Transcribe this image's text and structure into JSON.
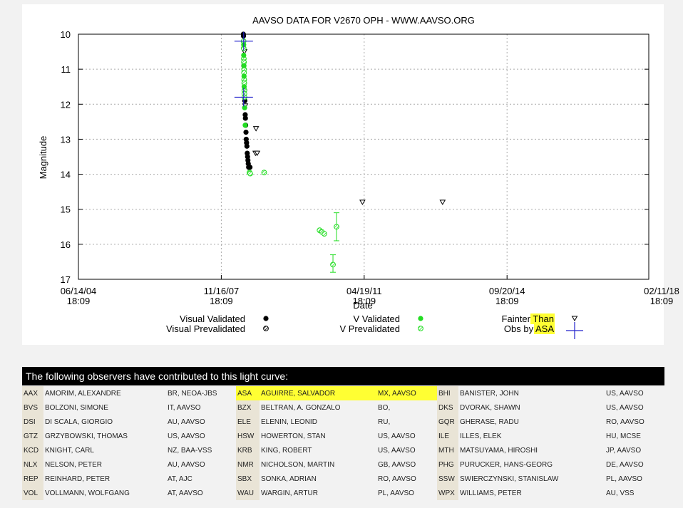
{
  "chart_data": {
    "type": "scatter",
    "title": "AAVSO DATA FOR V2670 OPH - WWW.AAVSO.ORG",
    "xlabel": "Date",
    "ylabel": "Magnitude",
    "xlim": [
      "2004-06-14",
      "2018-02-11"
    ],
    "ylim": [
      17,
      10
    ],
    "y_inverted": true,
    "grid": true,
    "legend_placement": "bottom",
    "x_ticks": [
      {
        "date": "2004-06-14",
        "line1": "06/14/04",
        "line2": "18:09"
      },
      {
        "date": "2007-11-16",
        "line1": "11/16/07",
        "line2": "18:09"
      },
      {
        "date": "2011-04-19",
        "line1": "04/19/11",
        "line2": "18:09"
      },
      {
        "date": "2014-09-20",
        "line1": "09/20/14",
        "line2": "18:09"
      },
      {
        "date": "2018-02-11",
        "line1": "02/11/18",
        "line2": "18:09"
      }
    ],
    "y_ticks": [
      10,
      11,
      12,
      13,
      14,
      15,
      16,
      17
    ],
    "colors": {
      "visual": "#000000",
      "v": "#22dd22",
      "asa": "#2222cc",
      "error_bar": "#22dd22"
    },
    "series": [
      {
        "name": "Visual Validated",
        "marker": "filled-circle",
        "color": "#000000",
        "points": [
          {
            "x": "2008-05-27",
            "y": 10.0
          },
          {
            "x": "2008-05-28",
            "y": 10.05
          },
          {
            "x": "2008-05-31",
            "y": 10.9
          },
          {
            "x": "2008-06-02",
            "y": 11.0
          },
          {
            "x": "2008-06-04",
            "y": 11.3
          },
          {
            "x": "2008-06-07",
            "y": 11.6
          },
          {
            "x": "2008-06-09",
            "y": 11.9
          },
          {
            "x": "2008-06-12",
            "y": 12.3
          },
          {
            "x": "2008-06-14",
            "y": 12.4
          },
          {
            "x": "2008-06-16",
            "y": 12.6
          },
          {
            "x": "2008-06-19",
            "y": 12.8
          },
          {
            "x": "2008-06-21",
            "y": 13.0
          },
          {
            "x": "2008-06-24",
            "y": 13.1
          },
          {
            "x": "2008-06-27",
            "y": 13.2
          },
          {
            "x": "2008-06-30",
            "y": 13.4
          },
          {
            "x": "2008-07-03",
            "y": 13.5
          },
          {
            "x": "2008-07-06",
            "y": 13.6
          },
          {
            "x": "2008-07-09",
            "y": 13.7
          },
          {
            "x": "2008-07-12",
            "y": 13.8
          },
          {
            "x": "2008-07-18",
            "y": 13.8
          },
          {
            "x": "2008-07-24",
            "y": 13.8
          }
        ]
      },
      {
        "name": "V Validated",
        "marker": "filled-circle",
        "color": "#22dd22",
        "points": [
          {
            "x": "2008-05-30",
            "y": 10.3
          },
          {
            "x": "2008-05-30",
            "y": 10.6
          },
          {
            "x": "2008-06-01",
            "y": 10.9
          },
          {
            "x": "2008-06-02",
            "y": 11.2
          },
          {
            "x": "2008-06-03",
            "y": 11.5
          },
          {
            "x": "2008-06-07",
            "y": 12.1
          },
          {
            "x": "2008-06-12",
            "y": 12.6
          }
        ]
      },
      {
        "name": "V Prevalidated",
        "marker": "hatched-circle",
        "color": "#22dd22",
        "points": [
          {
            "x": "2008-05-29",
            "y": 10.2
          },
          {
            "x": "2008-05-30",
            "y": 10.4
          },
          {
            "x": "2008-05-31",
            "y": 10.7
          },
          {
            "x": "2008-06-01",
            "y": 10.8
          },
          {
            "x": "2008-06-02",
            "y": 11.0
          },
          {
            "x": "2008-06-02",
            "y": 11.1
          },
          {
            "x": "2008-06-03",
            "y": 11.3
          },
          {
            "x": "2008-06-04",
            "y": 11.4
          },
          {
            "x": "2008-06-05",
            "y": 11.6
          },
          {
            "x": "2008-06-05",
            "y": 11.7
          },
          {
            "x": "2008-06-06",
            "y": 11.8
          },
          {
            "x": "2008-07-20",
            "y": 13.95
          },
          {
            "x": "2008-07-26",
            "y": 13.98
          },
          {
            "x": "2008-11-25",
            "y": 13.95
          },
          {
            "x": "2010-03-25",
            "y": 15.6
          },
          {
            "x": "2010-04-15",
            "y": 15.65
          },
          {
            "x": "2010-05-05",
            "y": 15.7
          },
          {
            "x": "2010-08-20",
            "y": 15.5
          },
          {
            "x": "2010-07-20",
            "y": 16.58
          }
        ]
      },
      {
        "name": "Fainter Than",
        "marker": "down-triangle",
        "color": "#000000",
        "points": [
          {
            "x": "2008-06-05",
            "y": 10.5
          },
          {
            "x": "2008-06-12",
            "y": 12.05
          },
          {
            "x": "2008-09-15",
            "y": 12.7
          },
          {
            "x": "2008-09-10",
            "y": 13.4
          },
          {
            "x": "2008-09-25",
            "y": 13.4
          },
          {
            "x": "2011-04-04",
            "y": 14.8
          },
          {
            "x": "2013-03-05",
            "y": 14.8
          }
        ]
      },
      {
        "name": "Obs by ASA",
        "marker": "plus",
        "color": "#2222cc",
        "points": [
          {
            "x": "2008-05-30",
            "y": 10.2
          },
          {
            "x": "2008-05-30",
            "y": 11.8
          }
        ]
      }
    ],
    "error_bars": [
      {
        "x": "2010-08-20",
        "y_low": 15.1,
        "y_high": 15.9
      },
      {
        "x": "2010-07-20",
        "y_low": 16.3,
        "y_high": 16.8
      }
    ],
    "legend": [
      {
        "label": "Visual Validated",
        "marker": "filled-circle",
        "color": "#000000"
      },
      {
        "label": "Visual Prevalidated",
        "marker": "hatched-circle",
        "color": "#000000"
      },
      {
        "label": "V Validated",
        "marker": "filled-circle",
        "color": "#22dd22"
      },
      {
        "label": "V Prevalidated",
        "marker": "hatched-circle",
        "color": "#22dd22"
      },
      {
        "label": "Fainter Than",
        "marker": "down-triangle",
        "color": "#000000"
      },
      {
        "label": "Obs by ASA",
        "marker": "plus",
        "color": "#2222cc"
      }
    ]
  },
  "observers_header": "The following observers have contributed to this light curve:",
  "observers": [
    [
      {
        "code": "AAX",
        "name": "AMORIM, ALEXANDRE",
        "org": "BR, NEOA-JBS"
      },
      {
        "code": "ASA",
        "name": "AGUIRRE, SALVADOR",
        "org": "MX, AAVSO",
        "highlight": true
      },
      {
        "code": "BHI",
        "name": "BANISTER, JOHN",
        "org": "US, AAVSO"
      }
    ],
    [
      {
        "code": "BVS",
        "name": "BOLZONI, SIMONE",
        "org": "IT, AAVSO"
      },
      {
        "code": "BZX",
        "name": "BELTRAN, A. GONZALO",
        "org": "BO,"
      },
      {
        "code": "DKS",
        "name": "DVORAK, SHAWN",
        "org": "US, AAVSO"
      }
    ],
    [
      {
        "code": "DSI",
        "name": "DI SCALA, GIORGIO",
        "org": "AU, AAVSO"
      },
      {
        "code": "ELE",
        "name": "ELENIN, LEONID",
        "org": "RU,"
      },
      {
        "code": "GQR",
        "name": "GHERASE, RADU",
        "org": "RO, AAVSO"
      }
    ],
    [
      {
        "code": "GTZ",
        "name": "GRZYBOWSKI, THOMAS",
        "org": "US, AAVSO"
      },
      {
        "code": "HSW",
        "name": "HOWERTON, STAN",
        "org": "US, AAVSO"
      },
      {
        "code": "ILE",
        "name": "ILLES, ELEK",
        "org": "HU, MCSE"
      }
    ],
    [
      {
        "code": "KCD",
        "name": "KNIGHT, CARL",
        "org": "NZ, BAA-VSS"
      },
      {
        "code": "KRB",
        "name": "KING, ROBERT",
        "org": "US, AAVSO"
      },
      {
        "code": "MTH",
        "name": "MATSUYAMA, HIROSHI",
        "org": "JP, AAVSO"
      }
    ],
    [
      {
        "code": "NLX",
        "name": "NELSON, PETER",
        "org": "AU, AAVSO"
      },
      {
        "code": "NMR",
        "name": "NICHOLSON, MARTIN",
        "org": "GB, AAVSO"
      },
      {
        "code": "PHG",
        "name": "PURUCKER, HANS-GEORG",
        "org": "DE, AAVSO"
      }
    ],
    [
      {
        "code": "REP",
        "name": "REINHARD, PETER",
        "org": "AT, AJC"
      },
      {
        "code": "SBX",
        "name": "SONKA, ADRIAN",
        "org": "RO, AAVSO"
      },
      {
        "code": "SSW",
        "name": "SWIERCZYNSKI, STANISLAW",
        "org": "PL, AAVSO"
      }
    ],
    [
      {
        "code": "VOL",
        "name": "VOLLMANN, WOLFGANG",
        "org": "AT, AAVSO"
      },
      {
        "code": "WAU",
        "name": "WARGIN, ARTUR",
        "org": "PL, AAVSO"
      },
      {
        "code": "WPX",
        "name": "WILLIAMS, PETER",
        "org": "AU, VSS"
      }
    ]
  ]
}
